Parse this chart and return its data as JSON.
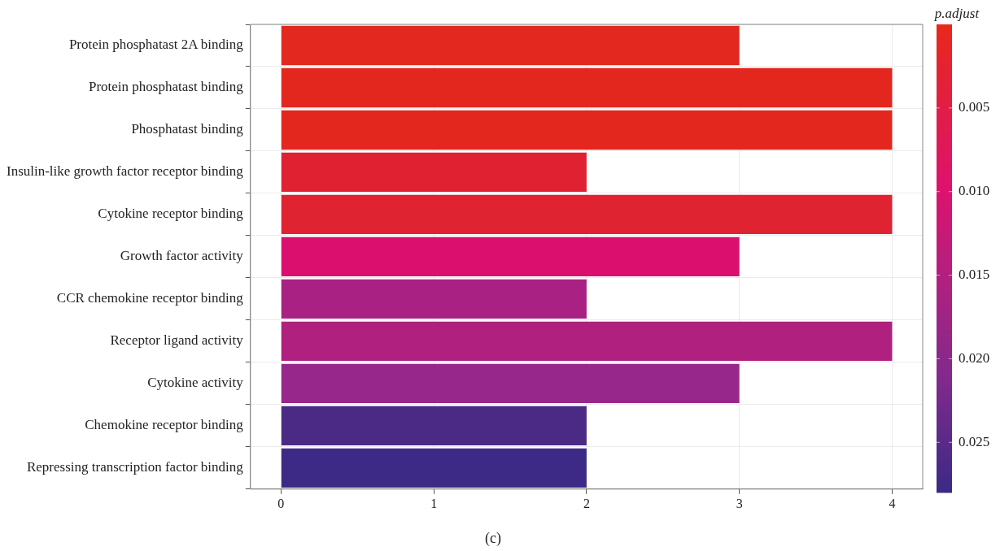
{
  "chart_data": {
    "type": "bar",
    "orientation": "horizontal",
    "categories": [
      "Protein phosphatast 2A binding",
      "Protein phosphatast binding",
      "Phosphatast binding",
      "Insulin-like growth factor receptor binding",
      "Cytokine receptor binding",
      "Growth factor activity",
      "CCR chemokine receptor binding",
      "Receptor ligand activity",
      "Cytokine activity",
      "Chemokine receptor binding",
      "Repressing transcription factor binding"
    ],
    "values": [
      3,
      4,
      4,
      2,
      4,
      3,
      2,
      4,
      3,
      2,
      2
    ],
    "colors": [
      "#e3281f",
      "#e3271f",
      "#e3271f",
      "#e02132",
      "#e02330",
      "#db0f6e",
      "#a92182",
      "#b0207f",
      "#97278a",
      "#4b2a85",
      "#3c2a86"
    ],
    "xlim": [
      -0.2,
      4.2
    ],
    "xticks": [
      0,
      1,
      2,
      3,
      4
    ],
    "grid": true,
    "legend": false,
    "clabel": "p.adjust",
    "clim": [
      0,
      0.028
    ],
    "cticks": [
      0.005,
      {
        "value": 0.01,
        "label": "0.010"
      },
      0.015,
      {
        "value": 0.02,
        "label": "0.020"
      },
      0.025
    ],
    "annotations": [
      "(c)"
    ]
  }
}
